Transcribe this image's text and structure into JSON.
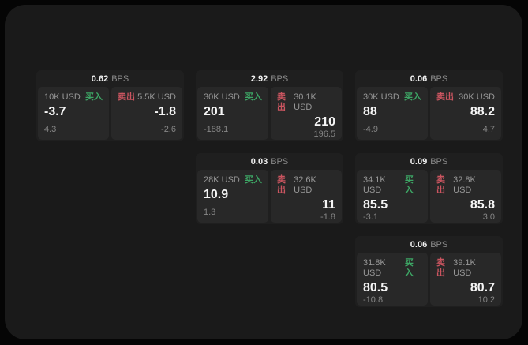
{
  "colors": {
    "outer_bg": "#050505",
    "page_bg": "#1a1a1a",
    "card_bg": "#1f1f1f",
    "panel_bg": "#282828",
    "label_gray": "#979797",
    "sub_gray": "#868686",
    "value_white": "#f5f5f5",
    "buy_green": "#3da665",
    "sell_red": "#cb5560"
  },
  "labels": {
    "bps": "BPS",
    "buy": "买入",
    "sell": "卖出"
  },
  "cards": [
    {
      "bps": "0.62",
      "buy": {
        "amount": "10K USD",
        "value": "-3.7",
        "sub": "4.3"
      },
      "sell": {
        "amount": "5.5K USD",
        "value": "-1.8",
        "sub": "-2.6"
      }
    },
    {
      "bps": "2.92",
      "buy": {
        "amount": "30K USD",
        "value": "201",
        "sub": "-188.1"
      },
      "sell": {
        "amount": "30.1K USD",
        "value": "210",
        "sub": "196.5"
      }
    },
    {
      "bps": "0.06",
      "buy": {
        "amount": "30K USD",
        "value": "88",
        "sub": "-4.9"
      },
      "sell": {
        "amount": "30K USD",
        "value": "88.2",
        "sub": "4.7"
      }
    },
    {
      "bps": "0.03",
      "buy": {
        "amount": "28K USD",
        "value": "10.9",
        "sub": "1.3"
      },
      "sell": {
        "amount": "32.6K USD",
        "value": "11",
        "sub": "-1.8"
      }
    },
    {
      "bps": "0.09",
      "buy": {
        "amount": "34.1K USD",
        "value": "85.5",
        "sub": "-3.1"
      },
      "sell": {
        "amount": "32.8K USD",
        "value": "85.8",
        "sub": "3.0"
      }
    },
    {
      "bps": "0.06",
      "buy": {
        "amount": "31.8K USD",
        "value": "80.5",
        "sub": "-10.8"
      },
      "sell": {
        "amount": "39.1K USD",
        "value": "80.7",
        "sub": "10.2"
      }
    }
  ]
}
